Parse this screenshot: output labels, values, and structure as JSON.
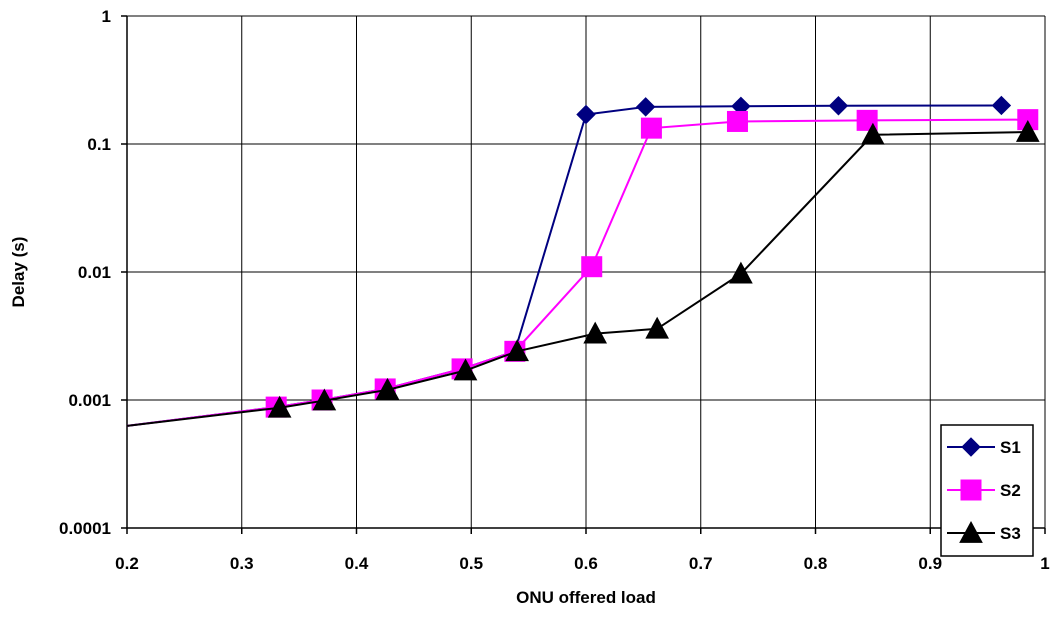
{
  "chart_data": {
    "type": "line",
    "title": "",
    "xlabel": "ONU offered load",
    "ylabel": "Delay (s)",
    "xlim": [
      0.2,
      1
    ],
    "ylim": [
      0.0001,
      1
    ],
    "y_scale": "log",
    "x_ticks": [
      "0.2",
      "0.3",
      "0.4",
      "0.5",
      "0.6",
      "0.7",
      "0.8",
      "0.9",
      "1"
    ],
    "y_ticks": [
      "0.0001",
      "0.001",
      "0.01",
      "0.1",
      "1"
    ],
    "grid": true,
    "legend_position": "bottom-right",
    "series": [
      {
        "name": "S1",
        "color": "#000080",
        "marker": "diamond",
        "points": [
          [
            0.195,
            0.00062
          ],
          [
            0.33,
            0.00088
          ],
          [
            0.37,
            0.001
          ],
          [
            0.425,
            0.00122
          ],
          [
            0.492,
            0.00175
          ],
          [
            0.538,
            0.0024
          ],
          [
            0.6,
            0.17
          ],
          [
            0.652,
            0.195
          ],
          [
            0.735,
            0.197
          ],
          [
            0.82,
            0.199
          ],
          [
            0.962,
            0.2
          ]
        ]
      },
      {
        "name": "S2",
        "color": "#FF00FF",
        "marker": "square",
        "points": [
          [
            0.195,
            0.00062
          ],
          [
            0.33,
            0.00088
          ],
          [
            0.37,
            0.001
          ],
          [
            0.425,
            0.00122
          ],
          [
            0.492,
            0.00175
          ],
          [
            0.538,
            0.0024
          ],
          [
            0.605,
            0.011
          ],
          [
            0.657,
            0.133
          ],
          [
            0.732,
            0.15
          ],
          [
            0.845,
            0.153
          ],
          [
            0.985,
            0.155
          ]
        ]
      },
      {
        "name": "S3",
        "color": "#000000",
        "marker": "triangle",
        "points": [
          [
            0.195,
            0.00062
          ],
          [
            0.333,
            0.00087
          ],
          [
            0.372,
            0.00099
          ],
          [
            0.427,
            0.0012
          ],
          [
            0.495,
            0.0017
          ],
          [
            0.54,
            0.0024
          ],
          [
            0.608,
            0.0033
          ],
          [
            0.662,
            0.0036
          ],
          [
            0.735,
            0.0097
          ],
          [
            0.85,
            0.118
          ],
          [
            0.985,
            0.124
          ]
        ]
      }
    ]
  }
}
